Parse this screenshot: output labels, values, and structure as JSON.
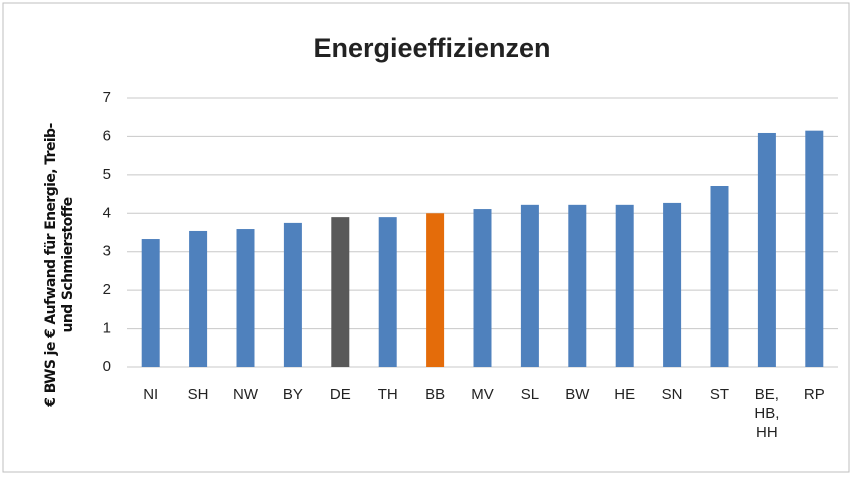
{
  "chart_data": {
    "type": "bar",
    "title": "Energieeffizienzen",
    "y_label": "€ BWS je € Aufwand für Energie, Treib- und Schmierstoffe",
    "categories": [
      "NI",
      "SH",
      "NW",
      "BY",
      "DE",
      "TH",
      "BB",
      "MV",
      "SL",
      "BW",
      "HE",
      "SN",
      "ST",
      "BE, HB, HH",
      "RP"
    ],
    "values": [
      3.33,
      3.54,
      3.59,
      3.75,
      3.9,
      3.9,
      4.0,
      4.11,
      4.22,
      4.22,
      4.22,
      4.27,
      4.71,
      6.09,
      6.15
    ],
    "colors": [
      "#4f81bd",
      "#4f81bd",
      "#4f81bd",
      "#4f81bd",
      "#595959",
      "#4f81bd",
      "#e46c0a",
      "#4f81bd",
      "#4f81bd",
      "#4f81bd",
      "#4f81bd",
      "#4f81bd",
      "#4f81bd",
      "#4f81bd",
      "#4f81bd"
    ],
    "ylim": [
      0,
      7
    ],
    "yticks": [
      0,
      1,
      2,
      3,
      4,
      5,
      6,
      7
    ],
    "grid": true
  }
}
